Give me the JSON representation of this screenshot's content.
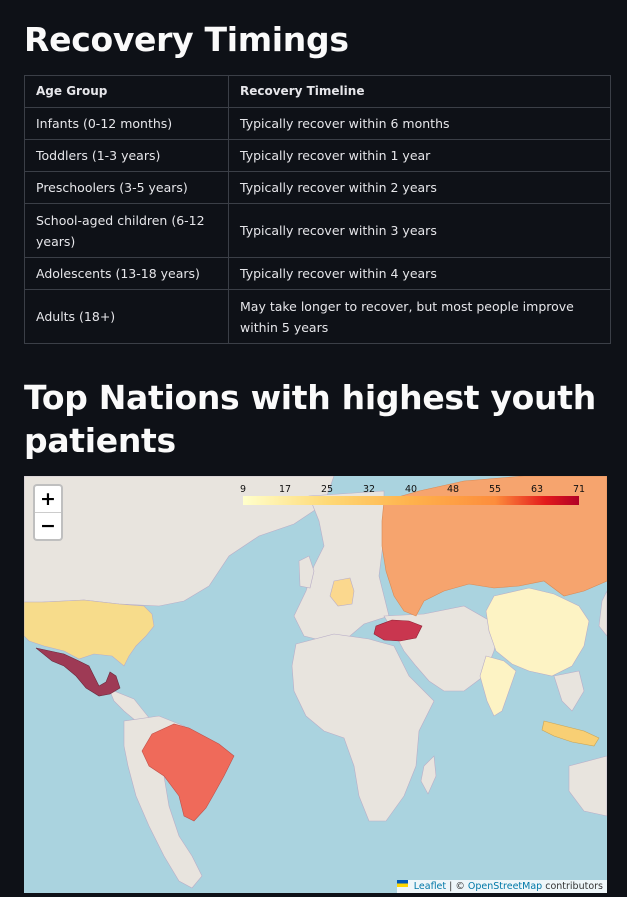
{
  "recovery": {
    "title": "Recovery Timings",
    "headers": [
      "Age Group",
      "Recovery Timeline"
    ],
    "rows": [
      [
        "Infants (0-12 months)",
        "Typically recover within 6 months"
      ],
      [
        "Toddlers (1-3 years)",
        "Typically recover within 1 year"
      ],
      [
        "Preschoolers (3-5 years)",
        "Typically recover within 2 years"
      ],
      [
        "School-aged children (6-12 years)",
        "Typically recover within 3 years"
      ],
      [
        "Adolescents (13-18 years)",
        "Typically recover within 4 years"
      ],
      [
        "Adults (18+)",
        "May take longer to recover, but most people improve within 5 years"
      ]
    ]
  },
  "map_section": {
    "title": "Top Nations with highest youth patients",
    "zoom_in": "+",
    "zoom_out": "−",
    "legend_ticks": [
      "9",
      "17",
      "25",
      "32",
      "40",
      "48",
      "55",
      "63",
      "71"
    ],
    "attribution": {
      "leaflet": "Leaflet",
      "sep": " | © ",
      "osm": "OpenStreetMap",
      "suffix": " contributors"
    },
    "colors": {
      "ocean": "#aad3df",
      "land": "#e8e4de",
      "mexico": "#9e3a55",
      "turkey": "#c9364f",
      "brazil": "#ef6a5a",
      "russia": "#f6a46e",
      "usa": "#f7dc8b",
      "china": "#fdf3c4",
      "germany": "#fbd88e",
      "indonesia": "#f8cf74"
    }
  }
}
